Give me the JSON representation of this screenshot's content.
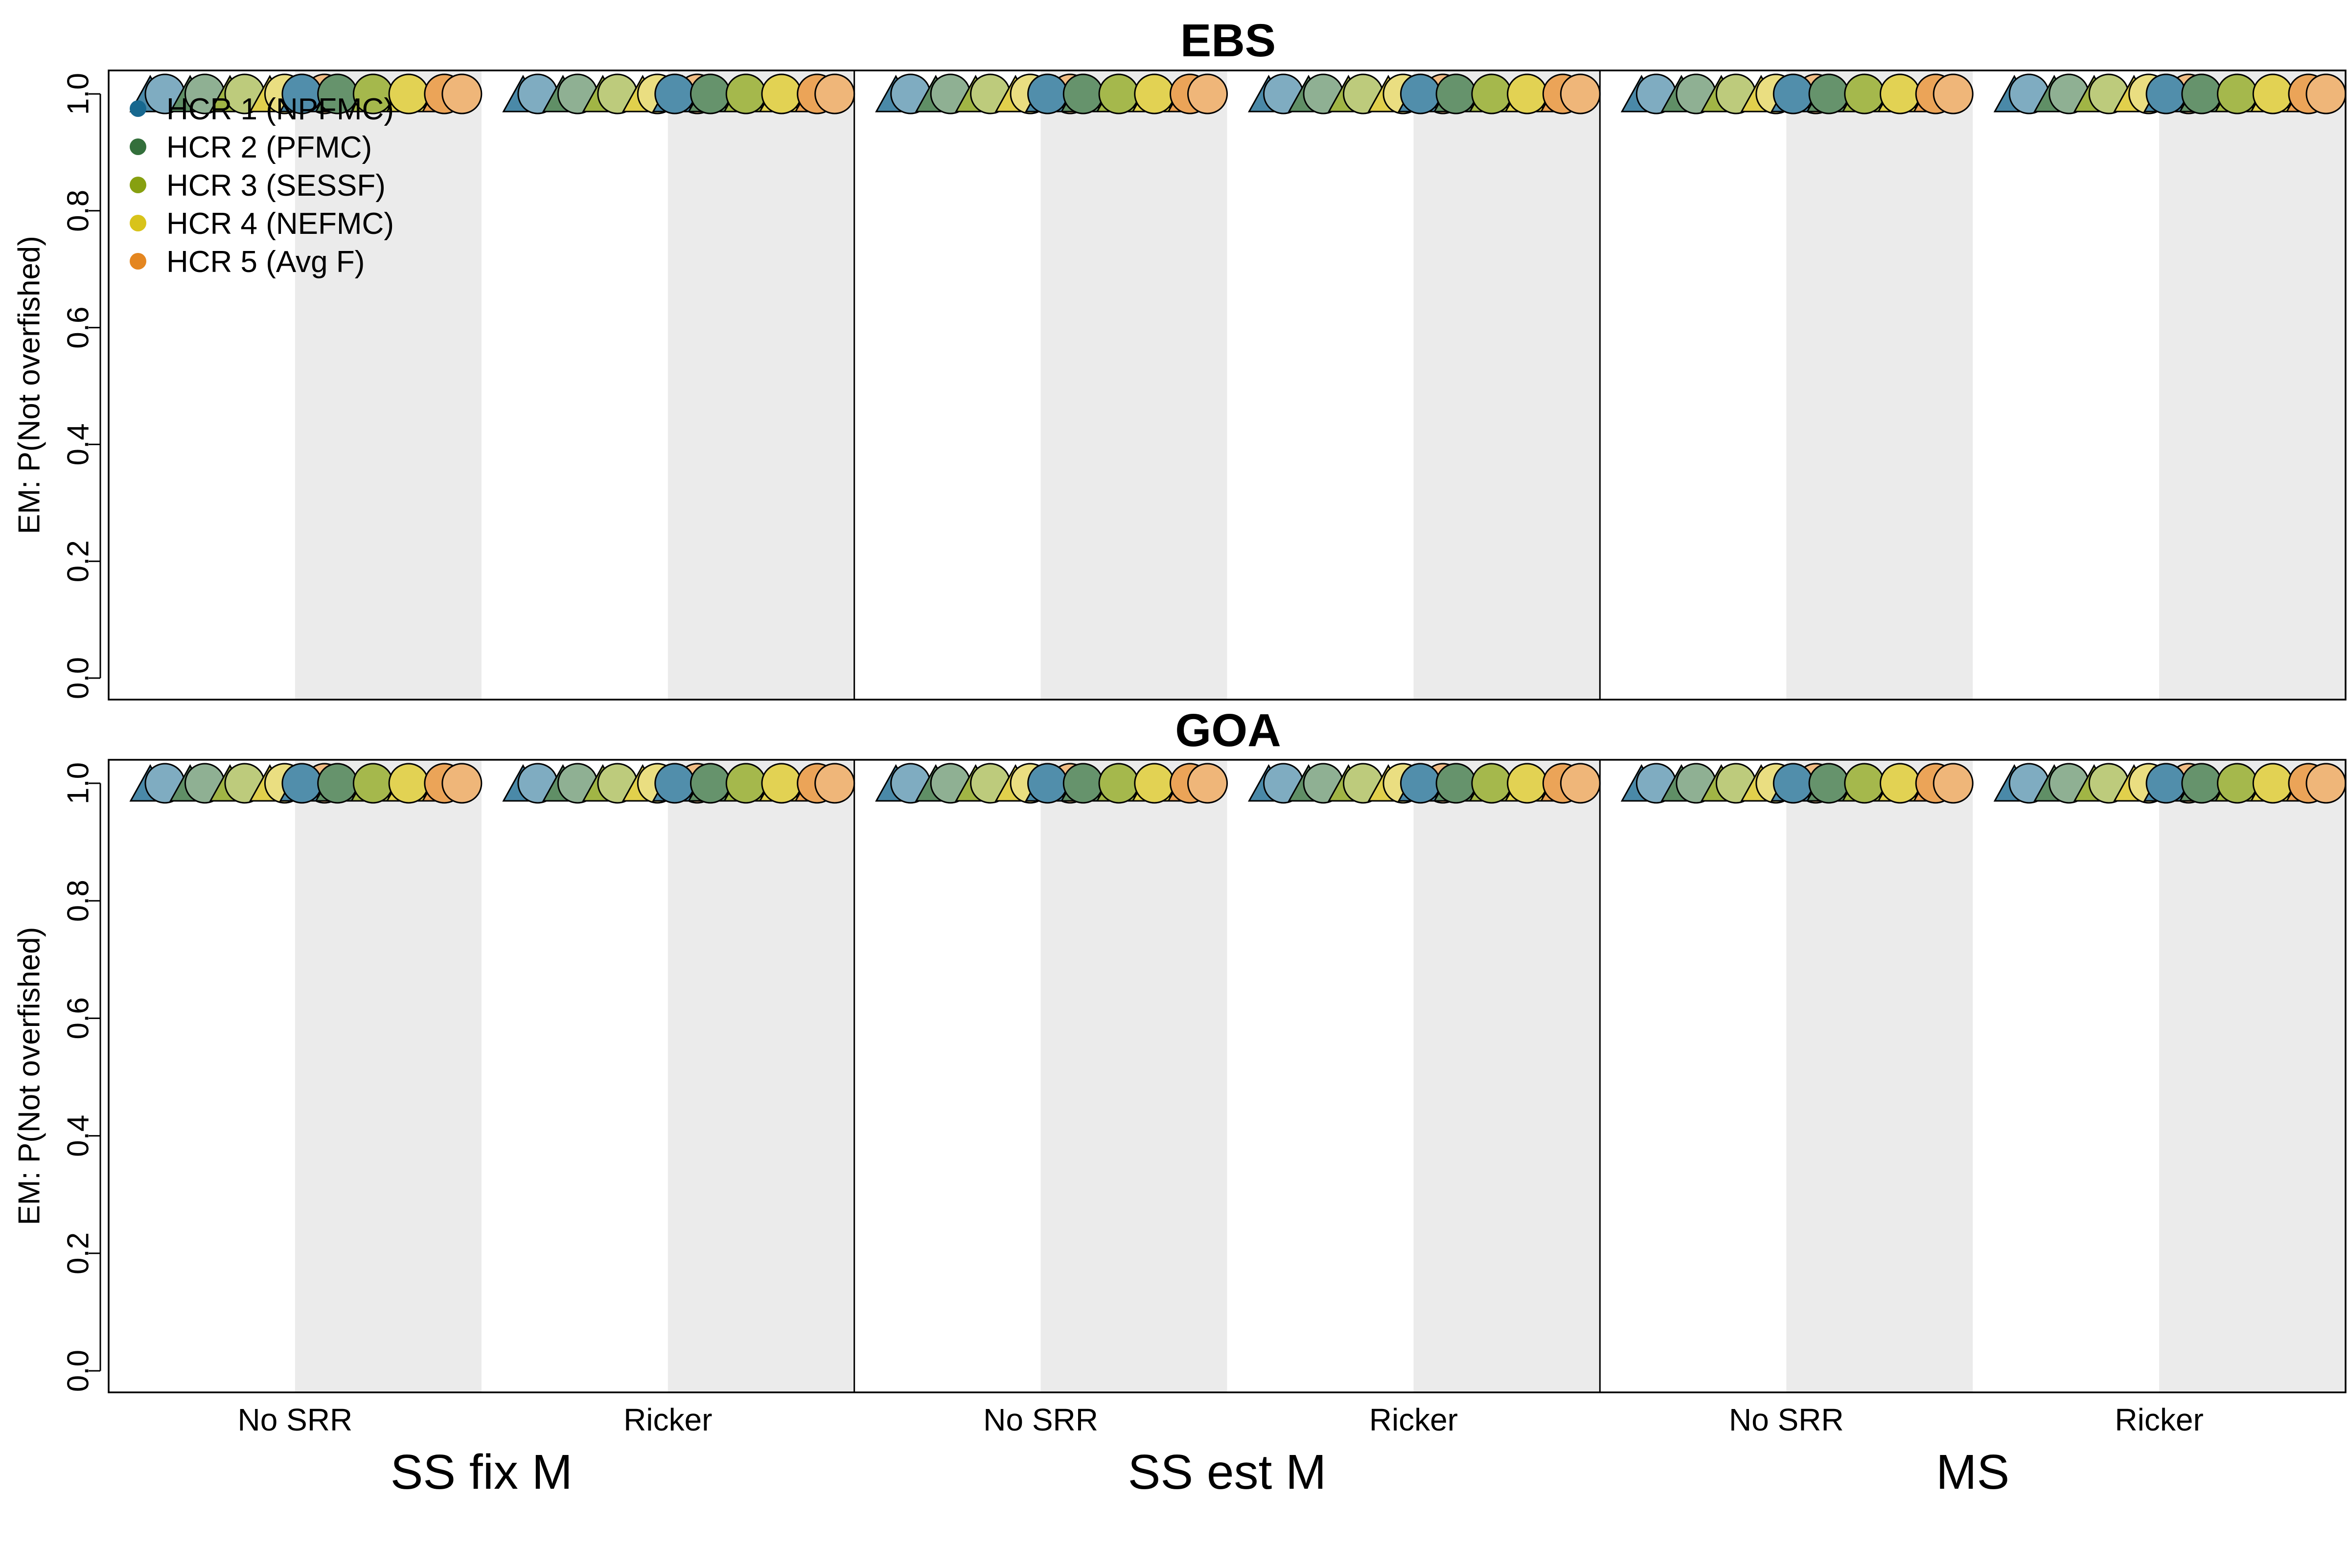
{
  "chart_data": [
    {
      "type": "scatter",
      "title": "EBS",
      "ylabel": "EM: P(Not overfished)",
      "ylim": [
        0,
        1
      ],
      "yticks": [
        "0.0",
        "0.2",
        "0.4",
        "0.6",
        "0.8",
        "1.0"
      ],
      "groups": [
        "SS fix M",
        "SS est M",
        "MS"
      ],
      "categories": [
        "No SRR",
        "Ricker"
      ],
      "series": [
        {
          "name": "HCR 1 (NPFMC)",
          "values": [
            1,
            1,
            1,
            1,
            1,
            1
          ]
        },
        {
          "name": "HCR 2 (PFMC)",
          "values": [
            1,
            1,
            1,
            1,
            1,
            1
          ]
        },
        {
          "name": "HCR 3 (SESSF)",
          "values": [
            1,
            1,
            1,
            1,
            1,
            1
          ]
        },
        {
          "name": "HCR 4 (NEFMC)",
          "values": [
            1,
            1,
            1,
            1,
            1,
            1
          ]
        },
        {
          "name": "HCR 5 (Avg F)",
          "values": [
            1,
            1,
            1,
            1,
            1,
            1
          ]
        }
      ],
      "legend": "top-left",
      "grid": false
    },
    {
      "type": "scatter",
      "title": "GOA",
      "ylabel": "EM: P(Not overfished)",
      "ylim": [
        0,
        1
      ],
      "yticks": [
        "0.0",
        "0.2",
        "0.4",
        "0.6",
        "0.8",
        "1.0"
      ],
      "groups": [
        "SS fix M",
        "SS est M",
        "MS"
      ],
      "categories": [
        "No SRR",
        "Ricker"
      ],
      "series": [
        {
          "name": "HCR 1 (NPFMC)",
          "values": [
            1,
            1,
            1,
            1,
            1,
            1
          ]
        },
        {
          "name": "HCR 2 (PFMC)",
          "values": [
            1,
            1,
            1,
            1,
            1,
            1
          ]
        },
        {
          "name": "HCR 3 (SESSF)",
          "values": [
            1,
            1,
            1,
            1,
            1,
            1
          ]
        },
        {
          "name": "HCR 4 (NEFMC)",
          "values": [
            1,
            1,
            1,
            1,
            1,
            1
          ]
        },
        {
          "name": "HCR 5 (Avg F)",
          "values": [
            1,
            1,
            1,
            1,
            1,
            1
          ]
        }
      ],
      "legend": "none",
      "grid": false
    }
  ],
  "colors": {
    "series": [
      "#17688f",
      "#336f3b",
      "#87a010",
      "#d8c31a",
      "#e48620"
    ],
    "shade": "#ebebeb"
  },
  "legend": {
    "items": [
      "HCR 1 (NPFMC)",
      "HCR 2 (PFMC)",
      "HCR 3 (SESSF)",
      "HCR 4 (NEFMC)",
      "HCR 5 (Avg F)"
    ]
  }
}
